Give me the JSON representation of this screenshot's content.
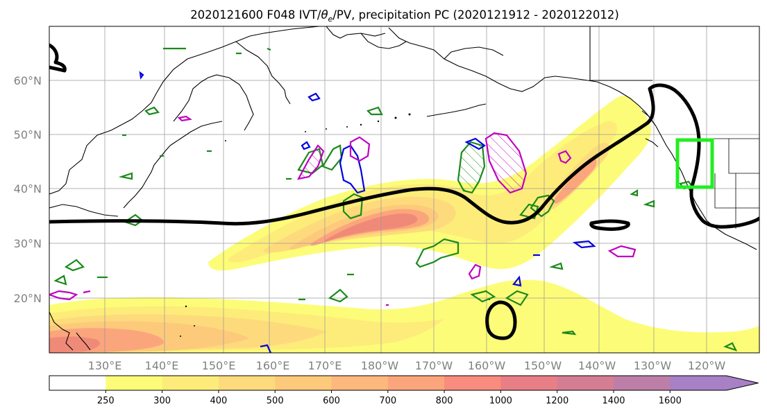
{
  "title": {
    "prefix": "2020121600 F048 IVT/",
    "theta": "θ",
    "sub": "e",
    "suffix": "/PV, precipitation PC (2020121912 - 2020122012)"
  },
  "map": {
    "lon_ticks": [
      "130°E",
      "140°E",
      "150°E",
      "160°E",
      "170°E",
      "180°W",
      "170°W",
      "160°W",
      "150°W",
      "140°W",
      "130°W",
      "120°W"
    ],
    "lat_ticks": [
      "60°N",
      "50°N",
      "40°N",
      "30°N",
      "20°N"
    ]
  },
  "colorbar": {
    "levels": [
      "250",
      "300",
      "400",
      "500",
      "600",
      "700",
      "800",
      "1000",
      "1200",
      "1400",
      "1600"
    ],
    "colors": [
      "#ffffff",
      "#fdfc78",
      "#fdec7a",
      "#fddb7c",
      "#fdca7c",
      "#fdb97d",
      "#fba57d",
      "#f88c7e",
      "#e87f86",
      "#d47e94",
      "#bd7fa8",
      "#a880c6"
    ]
  },
  "colors": {
    "ivt_core": "#f08a78",
    "theta_e_contour": "#000000",
    "pv_green": "#1a8a1a",
    "pv_blue": "#0000e0",
    "pv_magenta": "#c000c0",
    "target_box": "#22ee22"
  }
}
